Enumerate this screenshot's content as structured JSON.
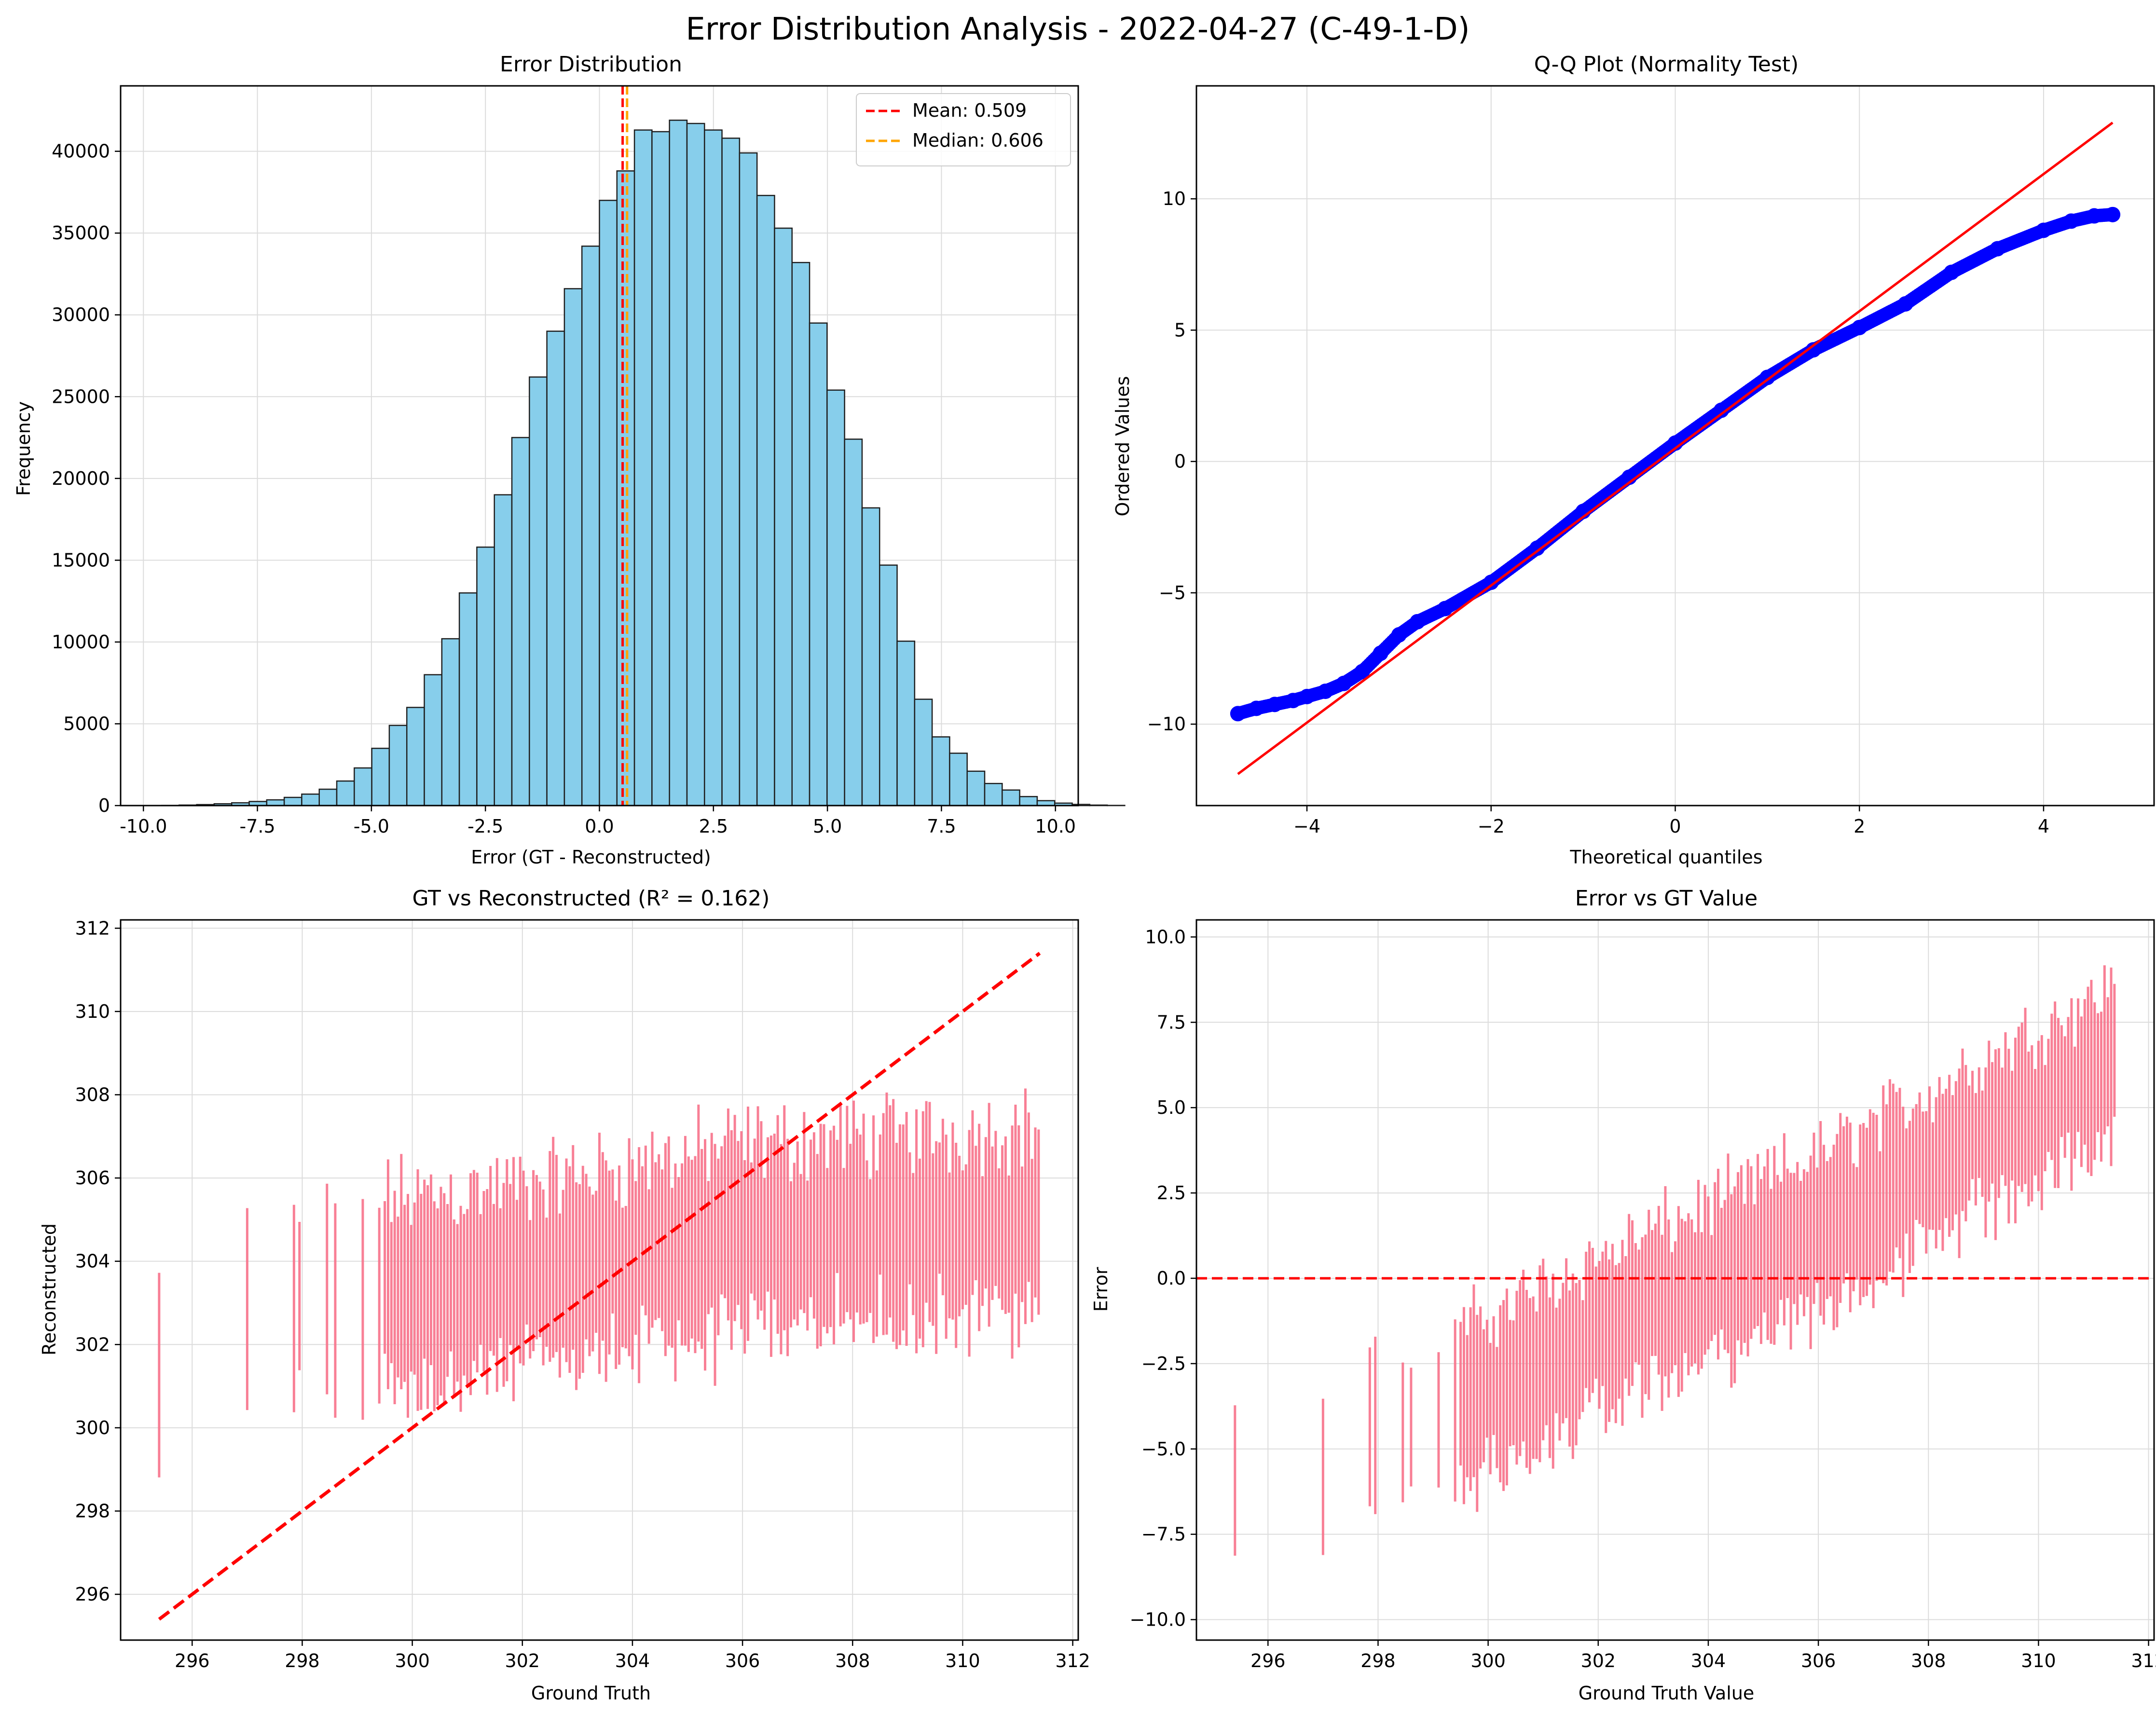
{
  "figure": {
    "title": "Error Distribution Analysis - 2022-04-27 (C-49-1-D)"
  },
  "colors": {
    "hist_fill": "#87ceeb",
    "hist_edge": "#1f1f1f",
    "mean_line": "#ff0000",
    "median_line": "#ffa500",
    "qq_points": "#0000ff",
    "qq_line": "#ff0000",
    "scatter": "#f77189",
    "ref_line": "#ff0000",
    "grid": "#dcdcdc"
  },
  "chart_data": [
    {
      "type": "bar",
      "title": "Error Distribution",
      "xlabel": "Error (GT - Reconstructed)",
      "ylabel": "Frequency",
      "xlim": [
        -10.5,
        10.5
      ],
      "ylim": [
        0,
        44000
      ],
      "xticks": [
        "-10.0",
        "-7.5",
        "-5.0",
        "-2.5",
        "0.0",
        "2.5",
        "5.0",
        "7.5",
        "10.0"
      ],
      "xtick_values": [
        -10,
        -7.5,
        -5,
        -2.5,
        0,
        2.5,
        5,
        7.5,
        10
      ],
      "yticks": [
        "0",
        "5000",
        "10000",
        "15000",
        "20000",
        "25000",
        "30000",
        "35000",
        "40000"
      ],
      "ytick_values": [
        0,
        5000,
        10000,
        15000,
        20000,
        25000,
        30000,
        35000,
        40000
      ],
      "bin_start": -9.6,
      "bin_width": 0.384,
      "values": [
        10,
        30,
        60,
        110,
        170,
        250,
        350,
        500,
        700,
        1000,
        1500,
        2300,
        3500,
        4900,
        6000,
        8000,
        10200,
        13000,
        15800,
        19000,
        22500,
        26200,
        29000,
        31600,
        34200,
        37000,
        38800,
        41300,
        41200,
        41900,
        41700,
        41300,
        40800,
        39900,
        37300,
        35300,
        33200,
        29500,
        25400,
        22400,
        18200,
        14700,
        10050,
        6500,
        4200,
        3200,
        2100,
        1350,
        950,
        550,
        300,
        150,
        70,
        30,
        10
      ],
      "mean": 0.509,
      "median": 0.606,
      "legend": [
        {
          "label": "Mean: 0.509",
          "color": "#ff0000"
        },
        {
          "label": "Median: 0.606",
          "color": "#ffa500"
        }
      ],
      "legend_loc": "upper right",
      "grid": true
    },
    {
      "type": "scatter",
      "title": "Q-Q Plot (Normality Test)",
      "xlabel": "Theoretical quantiles",
      "ylabel": "Ordered Values",
      "xlim": [
        -5.2,
        5.2
      ],
      "ylim": [
        -13.1,
        14.3
      ],
      "xticks": [
        "−4",
        "−2",
        "0",
        "2",
        "4"
      ],
      "xtick_values": [
        -4,
        -2,
        0,
        2,
        4
      ],
      "yticks": [
        "−10",
        "−5",
        "0",
        "5",
        "10"
      ],
      "ytick_values": [
        -10,
        -5,
        0,
        5,
        10
      ],
      "fit_line": {
        "x": [
          -4.75,
          4.75
        ],
        "y": [
          -11.9,
          12.9
        ]
      },
      "points_x": [
        -4.75,
        -4.55,
        -4.35,
        -4.15,
        -4.0,
        -3.8,
        -3.6,
        -3.4,
        -3.2,
        -3.0,
        -2.8,
        -2.5,
        -2.0,
        -1.5,
        -1.0,
        -0.5,
        0.0,
        0.5,
        1.0,
        1.5,
        2.0,
        2.5,
        3.0,
        3.5,
        4.0,
        4.3,
        4.55,
        4.75
      ],
      "points_y": [
        -9.6,
        -9.4,
        -9.25,
        -9.1,
        -8.95,
        -8.75,
        -8.45,
        -8.0,
        -7.3,
        -6.6,
        -6.1,
        -5.6,
        -4.6,
        -3.3,
        -1.9,
        -0.6,
        0.7,
        1.95,
        3.2,
        4.25,
        5.1,
        6.0,
        7.2,
        8.1,
        8.8,
        9.15,
        9.35,
        9.4
      ],
      "grid": true
    },
    {
      "type": "scatter",
      "title": "GT vs Reconstructed (R² = 0.162)",
      "xlabel": "Ground Truth",
      "ylabel": "Reconstructed",
      "r_squared": 0.162,
      "xlim": [
        294.7,
        312.1
      ],
      "ylim": [
        294.9,
        312.2
      ],
      "xticks": [
        "296",
        "298",
        "300",
        "302",
        "304",
        "306",
        "308",
        "310",
        "312"
      ],
      "xtick_values": [
        296,
        298,
        300,
        302,
        304,
        306,
        308,
        310,
        312
      ],
      "yticks": [
        "296",
        "298",
        "300",
        "302",
        "304",
        "306",
        "308",
        "310",
        "312"
      ],
      "ytick_values": [
        296,
        298,
        300,
        302,
        304,
        306,
        308,
        310,
        312
      ],
      "identity_line": {
        "x": [
          295.4,
          311.4
        ],
        "y": [
          295.4,
          311.4
        ]
      },
      "x_range": [
        295.4,
        311.4
      ],
      "band_center": {
        "x": [
          295.4,
          299,
          302,
          306,
          311.4
        ],
        "y": [
          301.5,
          303.2,
          303.6,
          304.6,
          305.0
        ]
      },
      "band_halfwidth": 2.8,
      "grid": true
    },
    {
      "type": "scatter",
      "title": "Error vs GT Value",
      "xlabel": "Ground Truth Value",
      "ylabel": "Error",
      "xlim": [
        294.7,
        312.1
      ],
      "ylim": [
        -10.6,
        10.5
      ],
      "xticks": [
        "296",
        "298",
        "300",
        "302",
        "304",
        "306",
        "308",
        "310",
        "312"
      ],
      "xtick_values": [
        296,
        298,
        300,
        302,
        304,
        306,
        308,
        310,
        312
      ],
      "yticks": [
        "−10.0",
        "−7.5",
        "−5.0",
        "−2.5",
        "0.0",
        "2.5",
        "5.0",
        "7.5",
        "10.0"
      ],
      "ytick_values": [
        -10,
        -7.5,
        -5,
        -2.5,
        0,
        2.5,
        5,
        7.5,
        10
      ],
      "zero_line": 0,
      "x_range": [
        295.4,
        311.4
      ],
      "band_center": {
        "x": [
          295.4,
          299,
          302,
          306,
          311.4
        ],
        "y": [
          -6.1,
          -4.2,
          -1.6,
          1.4,
          6.4
        ]
      },
      "band_halfwidth": 2.8,
      "grid": true
    }
  ]
}
